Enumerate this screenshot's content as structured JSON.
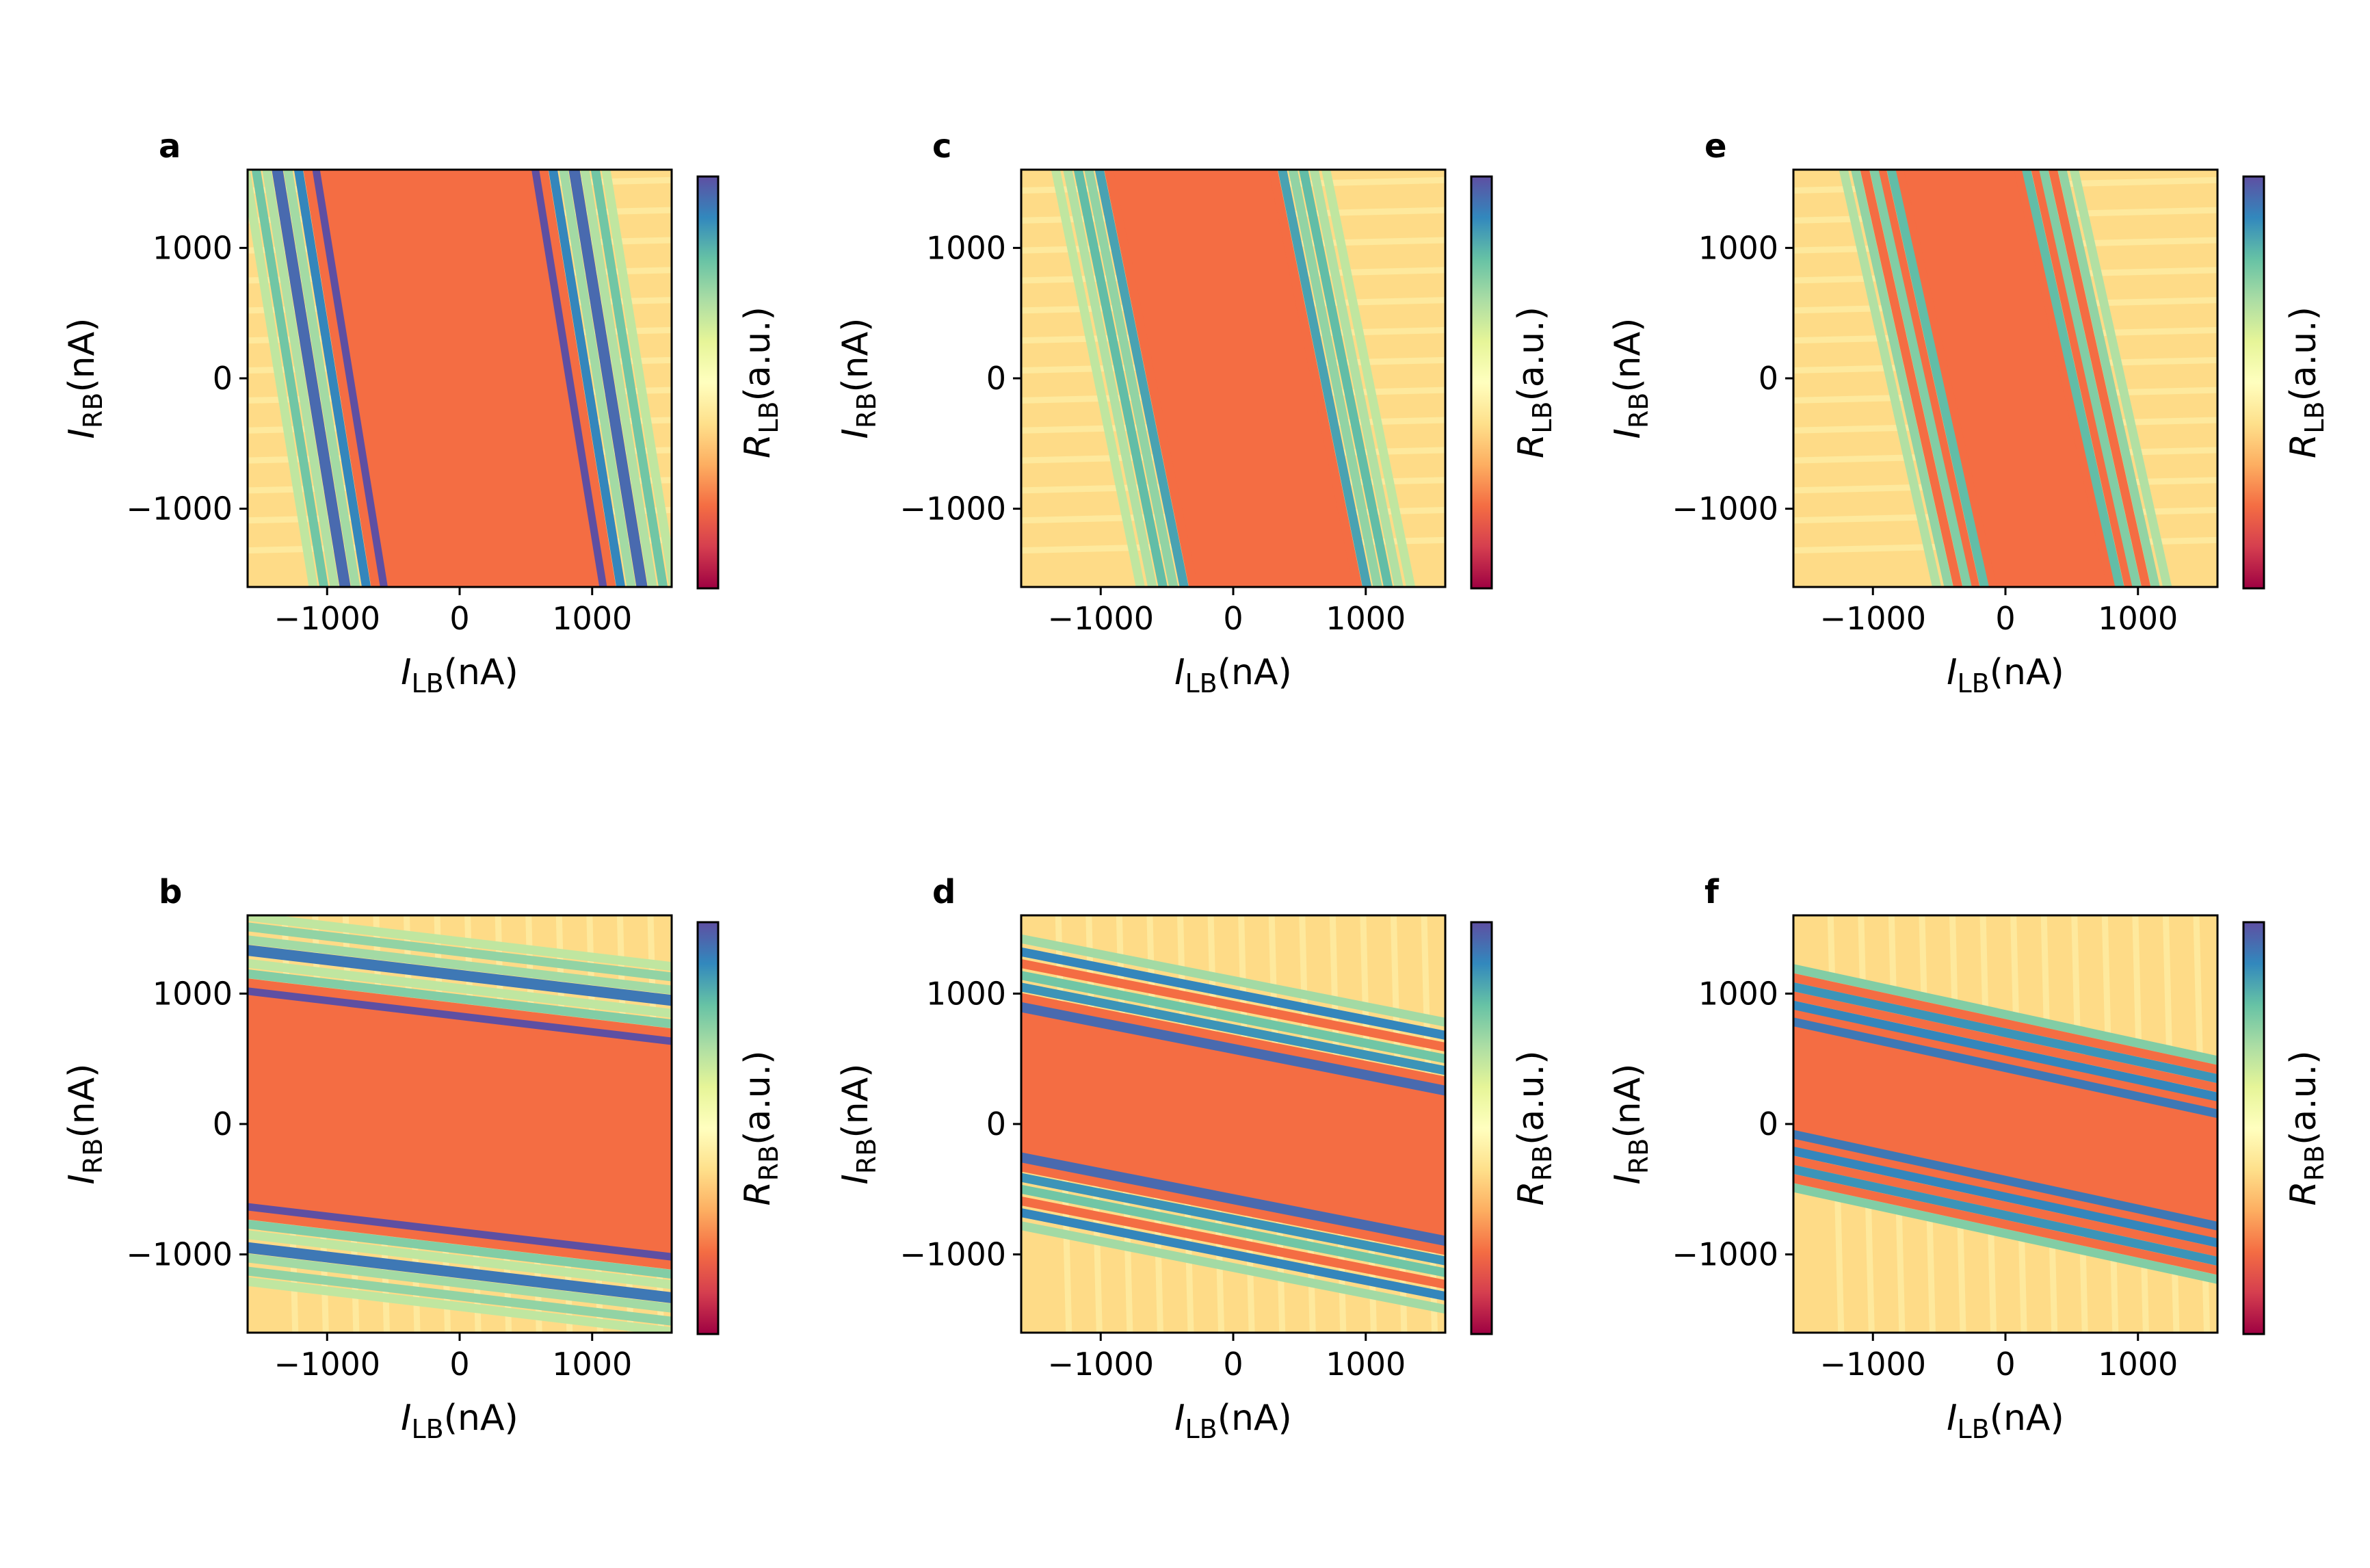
{
  "figure": {
    "colormap": [
      "#9e0142",
      "#d53e4f",
      "#f46d43",
      "#fdae61",
      "#fee08b",
      "#ffffbf",
      "#e6f598",
      "#abdda4",
      "#66c2a5",
      "#3288bd",
      "#5e4fa2"
    ]
  },
  "chart_data": [
    {
      "type": "heatmap",
      "panel": "a",
      "xlabel": {
        "var": "I",
        "sub": "LB",
        "unit": "(nA)"
      },
      "ylabel": {
        "var": "I",
        "sub": "RB",
        "unit": "(nA)"
      },
      "colorbar_label": {
        "var": "R",
        "sub": "LB",
        "unit": "(a.u.)"
      },
      "xlim": [
        -1600,
        1600
      ],
      "ylim": [
        -1600,
        1600
      ],
      "xticks": [
        -1000,
        0,
        1000
      ],
      "yticks": [
        -1000,
        0,
        1000
      ],
      "xtick_labels": [
        "−1000",
        "0",
        "1000"
      ],
      "ytick_labels": [
        "−1000",
        "0",
        "1000"
      ],
      "orientation": "vertical",
      "band_center": 0,
      "band_halfwidth": 820,
      "slope": -0.16,
      "lines": [
        {
          "offset": 0,
          "intensity": 1.0
        },
        {
          "offset": 50,
          "intensity": 0.05
        },
        {
          "offset": 120,
          "intensity": 0.8
        },
        {
          "offset": 200,
          "intensity": 0.4
        },
        {
          "offset": 280,
          "intensity": 0.9
        },
        {
          "offset": 360,
          "intensity": 0.35
        },
        {
          "offset": 440,
          "intensity": 0.55
        },
        {
          "offset": 520,
          "intensity": 0.3
        }
      ]
    },
    {
      "type": "heatmap",
      "panel": "b",
      "xlabel": {
        "var": "I",
        "sub": "LB",
        "unit": "(nA)"
      },
      "ylabel": {
        "var": "I",
        "sub": "RB",
        "unit": "(nA)"
      },
      "colorbar_label": {
        "var": "R",
        "sub": "RB",
        "unit": "(a.u.)"
      },
      "xlim": [
        -1600,
        1600
      ],
      "ylim": [
        -1600,
        1600
      ],
      "xticks": [
        -1000,
        0,
        1000
      ],
      "yticks": [
        -1000,
        0,
        1000
      ],
      "xtick_labels": [
        "−1000",
        "0",
        "1000"
      ],
      "ytick_labels": [
        "−1000",
        "0",
        "1000"
      ],
      "orientation": "horizontal",
      "band_center": 0,
      "band_halfwidth": 820,
      "slope": -0.12,
      "lines": [
        {
          "offset": 0,
          "intensity": 1.0
        },
        {
          "offset": 50,
          "intensity": 0.05
        },
        {
          "offset": 120,
          "intensity": 0.5
        },
        {
          "offset": 200,
          "intensity": 0.3
        },
        {
          "offset": 300,
          "intensity": 0.85
        },
        {
          "offset": 380,
          "intensity": 0.4
        },
        {
          "offset": 480,
          "intensity": 0.45
        },
        {
          "offset": 560,
          "intensity": 0.3
        }
      ]
    },
    {
      "type": "heatmap",
      "panel": "c",
      "xlabel": {
        "var": "I",
        "sub": "LB",
        "unit": "(nA)"
      },
      "ylabel": {
        "var": "I",
        "sub": "RB",
        "unit": "(nA)"
      },
      "colorbar_label": {
        "var": "R",
        "sub": "LB",
        "unit": "(a.u.)"
      },
      "xlim": [
        -1600,
        1600
      ],
      "ylim": [
        -1600,
        1600
      ],
      "xticks": [
        -1000,
        0,
        1000
      ],
      "yticks": [
        -1000,
        0,
        1000
      ],
      "xtick_labels": [
        "−1000",
        "0",
        "1000"
      ],
      "ytick_labels": [
        "−1000",
        "0",
        "1000"
      ],
      "orientation": "vertical",
      "band_center": 0,
      "band_halfwidth": 600,
      "slope": -0.2,
      "lines": [
        {
          "offset": 0,
          "intensity": 0.05
        },
        {
          "offset": 70,
          "intensity": 0.7
        },
        {
          "offset": 150,
          "intensity": 0.45
        },
        {
          "offset": 230,
          "intensity": 0.6
        },
        {
          "offset": 310,
          "intensity": 0.35
        },
        {
          "offset": 400,
          "intensity": 0.3
        }
      ]
    },
    {
      "type": "heatmap",
      "panel": "d",
      "xlabel": {
        "var": "I",
        "sub": "LB",
        "unit": "(nA)"
      },
      "ylabel": {
        "var": "I",
        "sub": "RB",
        "unit": "(nA)"
      },
      "colorbar_label": {
        "var": "R",
        "sub": "RB",
        "unit": "(a.u.)"
      },
      "xlim": [
        -1600,
        1600
      ],
      "ylim": [
        -1600,
        1600
      ],
      "xticks": [
        -1000,
        0,
        1000
      ],
      "yticks": [
        -1000,
        0,
        1000
      ],
      "xtick_labels": [
        "−1000",
        "0",
        "1000"
      ],
      "ytick_labels": [
        "−1000",
        "0",
        "1000"
      ],
      "orientation": "horizontal",
      "band_center": 0,
      "band_halfwidth": 560,
      "slope": -0.2,
      "lines": [
        {
          "offset": 0,
          "intensity": 0.9
        },
        {
          "offset": 70,
          "intensity": 0.05
        },
        {
          "offset": 150,
          "intensity": 0.75
        },
        {
          "offset": 240,
          "intensity": 0.55
        },
        {
          "offset": 330,
          "intensity": 0.05
        },
        {
          "offset": 420,
          "intensity": 0.8
        },
        {
          "offset": 520,
          "intensity": 0.4
        }
      ]
    },
    {
      "type": "heatmap",
      "panel": "e",
      "xlabel": {
        "var": "I",
        "sub": "LB",
        "unit": "(nA)"
      },
      "ylabel": {
        "var": "I",
        "sub": "RB",
        "unit": "(nA)"
      },
      "colorbar_label": {
        "var": "R",
        "sub": "LB",
        "unit": "(a.u.)"
      },
      "xlim": [
        -1600,
        1600
      ],
      "ylim": [
        -1600,
        1600
      ],
      "xticks": [
        -1000,
        0,
        1000
      ],
      "yticks": [
        -1000,
        0,
        1000
      ],
      "xtick_labels": [
        "−1000",
        "0",
        "1000"
      ],
      "ytick_labels": [
        "−1000",
        "0",
        "1000"
      ],
      "orientation": "vertical",
      "band_center": 0,
      "band_halfwidth": 430,
      "slope": -0.22,
      "lines": [
        {
          "offset": 0,
          "intensity": 0.05
        },
        {
          "offset": 60,
          "intensity": 0.6
        },
        {
          "offset": 130,
          "intensity": 0.05
        },
        {
          "offset": 190,
          "intensity": 0.5
        },
        {
          "offset": 260,
          "intensity": 0.05
        },
        {
          "offset": 330,
          "intensity": 0.45
        },
        {
          "offset": 420,
          "intensity": 0.35
        }
      ]
    },
    {
      "type": "heatmap",
      "panel": "f",
      "xlabel": {
        "var": "I",
        "sub": "LB",
        "unit": "(nA)"
      },
      "ylabel": {
        "var": "I",
        "sub": "RB",
        "unit": "(nA)"
      },
      "colorbar_label": {
        "var": "R",
        "sub": "RB",
        "unit": "(a.u.)"
      },
      "xlim": [
        -1600,
        1600
      ],
      "ylim": [
        -1600,
        1600
      ],
      "xticks": [
        -1000,
        0,
        1000
      ],
      "yticks": [
        -1000,
        0,
        1000
      ],
      "xtick_labels": [
        "−1000",
        "0",
        "1000"
      ],
      "ytick_labels": [
        "−1000",
        "0",
        "1000"
      ],
      "orientation": "horizontal",
      "band_center": 0,
      "band_halfwidth": 420,
      "slope": -0.22,
      "lines": [
        {
          "offset": 0,
          "intensity": 0.85
        },
        {
          "offset": 60,
          "intensity": 0.05
        },
        {
          "offset": 120,
          "intensity": 0.8
        },
        {
          "offset": 190,
          "intensity": 0.05
        },
        {
          "offset": 260,
          "intensity": 0.75
        },
        {
          "offset": 330,
          "intensity": 0.05
        },
        {
          "offset": 400,
          "intensity": 0.5
        }
      ]
    }
  ]
}
